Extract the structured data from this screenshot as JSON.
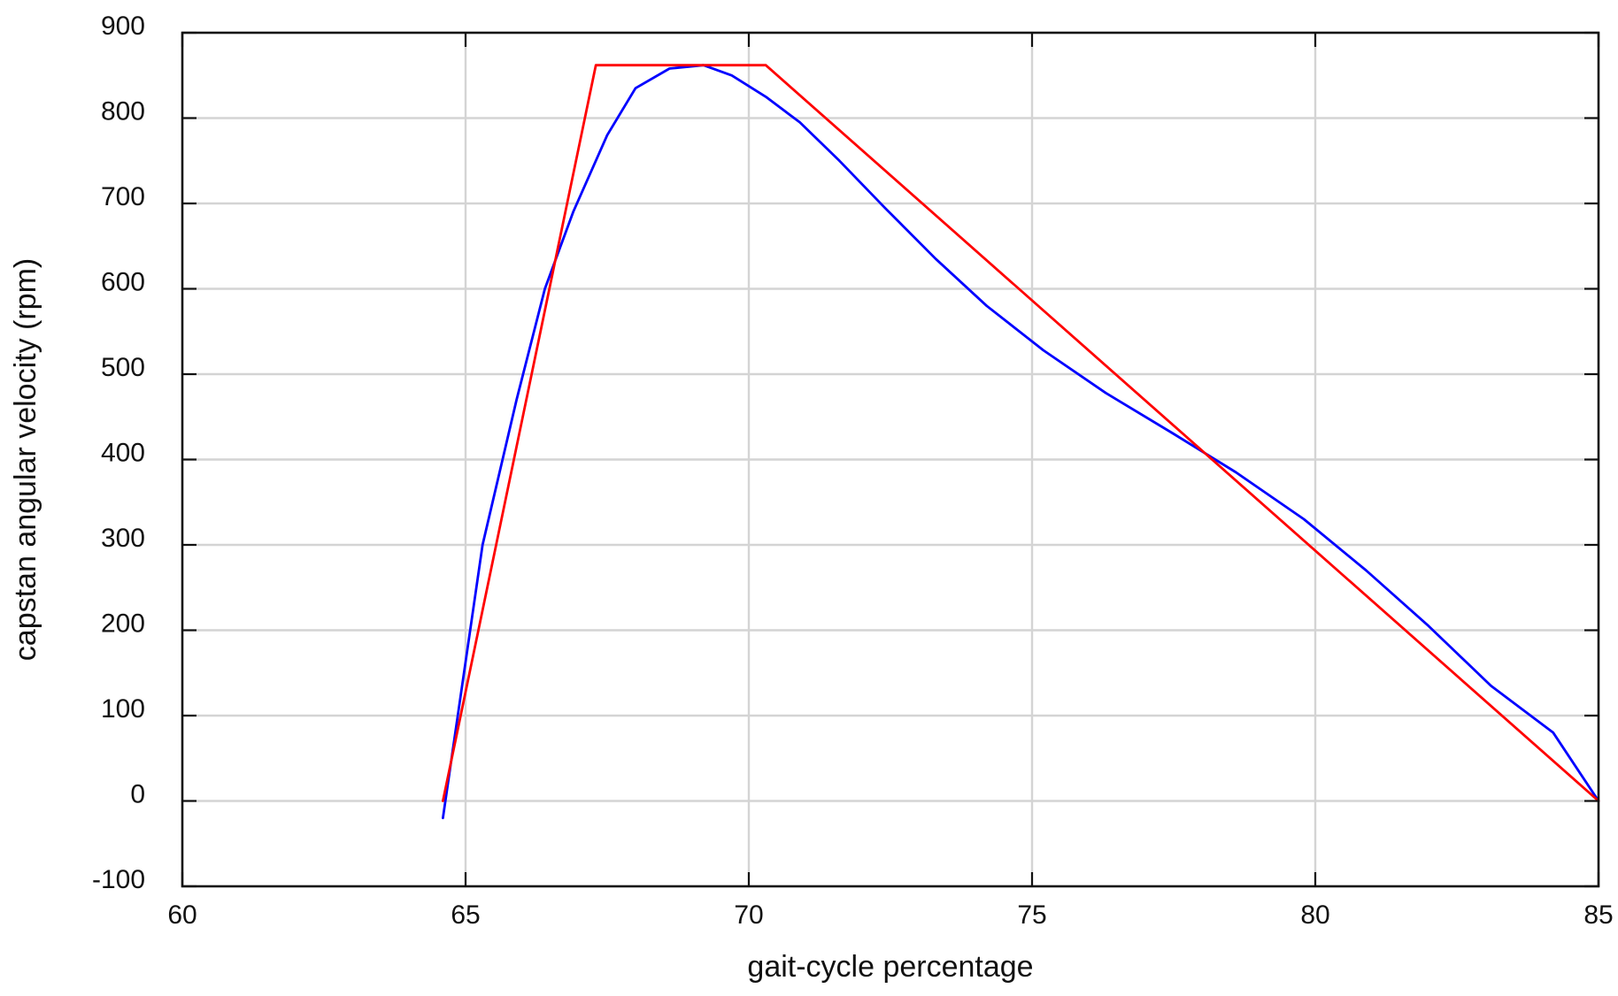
{
  "chart_data": {
    "type": "line",
    "title": "",
    "xlabel": "gait-cycle percentage",
    "ylabel": "capstan angular velocity (rpm)",
    "xlim": [
      60,
      85
    ],
    "ylim": [
      -100,
      900
    ],
    "xticks": [
      60,
      65,
      70,
      75,
      80,
      85
    ],
    "yticks": [
      -100,
      0,
      100,
      200,
      300,
      400,
      500,
      600,
      700,
      800,
      900
    ],
    "grid": true,
    "legend": "none",
    "series": [
      {
        "color": "#0000ff",
        "x": [
          64.6,
          65.3,
          65.9,
          66.4,
          66.9,
          67.5,
          68.0,
          68.6,
          69.2,
          69.7,
          70.3,
          70.9,
          71.6,
          72.4,
          73.3,
          74.2,
          75.2,
          76.3,
          77.5,
          78.6,
          79.8,
          80.9,
          82.0,
          83.1,
          84.2,
          85.0
        ],
        "y": [
          -20,
          300,
          470,
          600,
          690,
          780,
          835,
          858,
          862,
          850,
          825,
          795,
          750,
          695,
          635,
          580,
          528,
          478,
          430,
          385,
          330,
          270,
          205,
          135,
          80,
          0
        ]
      },
      {
        "color": "#ff0000",
        "x": [
          64.6,
          67.3,
          70.3,
          85.0
        ],
        "y": [
          0,
          862,
          862,
          0
        ]
      }
    ]
  }
}
